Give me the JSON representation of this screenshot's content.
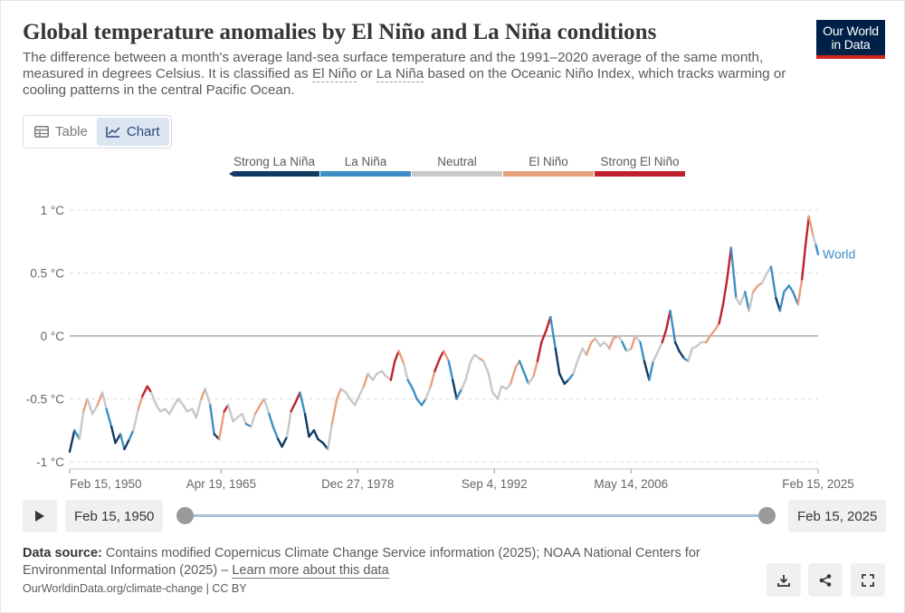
{
  "header": {
    "title": "Global temperature anomalies by El Niño and La Niña conditions",
    "subtitle_before": "The difference between a month's average land-sea surface temperature and the 1991–2020 average of the same month, measured in degrees Celsius. It is classified as ",
    "subtitle_link1": "El Niño",
    "subtitle_mid": " or ",
    "subtitle_link2": "La Niña",
    "subtitle_after": " based on the Oceanic Niño Index, which tracks warming or cooling patterns in the central Pacific Ocean."
  },
  "logo": {
    "line1": "Our World",
    "line2": "in Data",
    "bg_color": "#002147",
    "accent_color": "#ce261e"
  },
  "tabs": [
    {
      "label": "Table",
      "icon": "table-icon",
      "active": false
    },
    {
      "label": "Chart",
      "icon": "line-chart-icon",
      "active": true
    }
  ],
  "chart_data": {
    "type": "line",
    "title": "Global temperature anomalies by El Niño and La Niña conditions",
    "xlabel": "",
    "ylabel": "",
    "xlim": [
      1950.12,
      2025.12
    ],
    "ylim": [
      -1.0,
      1.0
    ],
    "y_ticks": [
      {
        "value": -1.0,
        "label": "-1 °C"
      },
      {
        "value": -0.5,
        "label": "-0.5 °C"
      },
      {
        "value": 0,
        "label": "0 °C"
      },
      {
        "value": 0.5,
        "label": "0.5 °C"
      },
      {
        "value": 1.0,
        "label": "1 °C"
      }
    ],
    "x_ticks": [
      {
        "value": 1950.12,
        "label": "Feb 15, 1950"
      },
      {
        "value": 1965.3,
        "label": "Apr 19, 1965"
      },
      {
        "value": 1978.98,
        "label": "Dec 27, 1978"
      },
      {
        "value": 1992.68,
        "label": "Sep 4, 1992"
      },
      {
        "value": 2006.37,
        "label": "May 14, 2006"
      },
      {
        "value": 2025.12,
        "label": "Feb 15, 2025"
      }
    ],
    "grid": "horizontal-dashed",
    "legend_position": "top",
    "categories": [
      {
        "name": "Strong La Niña",
        "color": "#0f3b63"
      },
      {
        "name": "La Niña",
        "color": "#3d8fc6"
      },
      {
        "name": "Neutral",
        "color": "#c8c8c8"
      },
      {
        "name": "El Niño",
        "color": "#e8a07f"
      },
      {
        "name": "Strong El Niño",
        "color": "#c0212f"
      }
    ],
    "series_label": "World",
    "series_label_color": "#3d8fc6",
    "series": [
      {
        "name": "World",
        "points": [
          [
            1950.12,
            -0.92,
            0
          ],
          [
            1950.6,
            -0.75,
            0
          ],
          [
            1951.1,
            -0.82,
            1
          ],
          [
            1951.5,
            -0.6,
            2
          ],
          [
            1951.9,
            -0.5,
            3
          ],
          [
            1952.4,
            -0.62,
            2
          ],
          [
            1952.9,
            -0.55,
            2
          ],
          [
            1953.4,
            -0.45,
            3
          ],
          [
            1953.8,
            -0.58,
            2
          ],
          [
            1954.3,
            -0.72,
            1
          ],
          [
            1954.7,
            -0.85,
            0
          ],
          [
            1955.2,
            -0.78,
            0
          ],
          [
            1955.6,
            -0.9,
            1
          ],
          [
            1956.1,
            -0.82,
            0
          ],
          [
            1956.5,
            -0.75,
            1
          ],
          [
            1957.0,
            -0.58,
            2
          ],
          [
            1957.4,
            -0.48,
            3
          ],
          [
            1957.9,
            -0.4,
            4
          ],
          [
            1958.3,
            -0.45,
            4
          ],
          [
            1958.8,
            -0.55,
            2
          ],
          [
            1959.2,
            -0.6,
            2
          ],
          [
            1959.7,
            -0.58,
            2
          ],
          [
            1960.1,
            -0.62,
            2
          ],
          [
            1960.6,
            -0.55,
            2
          ],
          [
            1961.0,
            -0.5,
            2
          ],
          [
            1961.5,
            -0.55,
            2
          ],
          [
            1961.9,
            -0.6,
            2
          ],
          [
            1962.4,
            -0.58,
            2
          ],
          [
            1962.8,
            -0.65,
            2
          ],
          [
            1963.3,
            -0.5,
            2
          ],
          [
            1963.7,
            -0.42,
            3
          ],
          [
            1964.2,
            -0.55,
            2
          ],
          [
            1964.6,
            -0.78,
            1
          ],
          [
            1965.1,
            -0.82,
            0
          ],
          [
            1965.6,
            -0.6,
            3
          ],
          [
            1966.0,
            -0.55,
            4
          ],
          [
            1966.5,
            -0.68,
            2
          ],
          [
            1966.9,
            -0.65,
            2
          ],
          [
            1967.4,
            -0.62,
            2
          ],
          [
            1967.8,
            -0.7,
            2
          ],
          [
            1968.3,
            -0.72,
            1
          ],
          [
            1968.7,
            -0.62,
            2
          ],
          [
            1969.2,
            -0.55,
            3
          ],
          [
            1969.6,
            -0.5,
            3
          ],
          [
            1970.1,
            -0.62,
            2
          ],
          [
            1970.5,
            -0.72,
            1
          ],
          [
            1971.0,
            -0.82,
            1
          ],
          [
            1971.4,
            -0.88,
            0
          ],
          [
            1971.9,
            -0.8,
            0
          ],
          [
            1972.3,
            -0.6,
            2
          ],
          [
            1972.8,
            -0.52,
            4
          ],
          [
            1973.2,
            -0.45,
            4
          ],
          [
            1973.7,
            -0.62,
            1
          ],
          [
            1974.1,
            -0.8,
            0
          ],
          [
            1974.6,
            -0.75,
            0
          ],
          [
            1975.0,
            -0.82,
            0
          ],
          [
            1975.5,
            -0.85,
            0
          ],
          [
            1976.0,
            -0.9,
            0
          ],
          [
            1976.4,
            -0.7,
            2
          ],
          [
            1976.9,
            -0.5,
            3
          ],
          [
            1977.3,
            -0.42,
            3
          ],
          [
            1977.8,
            -0.45,
            2
          ],
          [
            1978.2,
            -0.5,
            2
          ],
          [
            1978.7,
            -0.55,
            2
          ],
          [
            1979.1,
            -0.48,
            2
          ],
          [
            1979.6,
            -0.4,
            2
          ],
          [
            1980.0,
            -0.3,
            3
          ],
          [
            1980.5,
            -0.35,
            2
          ],
          [
            1980.9,
            -0.3,
            2
          ],
          [
            1981.4,
            -0.28,
            2
          ],
          [
            1981.8,
            -0.32,
            2
          ],
          [
            1982.3,
            -0.35,
            2
          ],
          [
            1982.7,
            -0.2,
            4
          ],
          [
            1983.1,
            -0.12,
            4
          ],
          [
            1983.6,
            -0.22,
            3
          ],
          [
            1984.0,
            -0.35,
            2
          ],
          [
            1984.5,
            -0.42,
            1
          ],
          [
            1984.9,
            -0.5,
            1
          ],
          [
            1985.4,
            -0.55,
            1
          ],
          [
            1985.8,
            -0.5,
            1
          ],
          [
            1986.3,
            -0.4,
            2
          ],
          [
            1986.7,
            -0.28,
            3
          ],
          [
            1987.2,
            -0.18,
            4
          ],
          [
            1987.6,
            -0.12,
            4
          ],
          [
            1988.1,
            -0.2,
            3
          ],
          [
            1988.5,
            -0.35,
            1
          ],
          [
            1988.9,
            -0.5,
            0
          ],
          [
            1989.4,
            -0.42,
            1
          ],
          [
            1989.8,
            -0.35,
            2
          ],
          [
            1990.3,
            -0.2,
            2
          ],
          [
            1990.7,
            -0.15,
            2
          ],
          [
            1991.2,
            -0.18,
            2
          ],
          [
            1991.6,
            -0.2,
            3
          ],
          [
            1992.1,
            -0.3,
            2
          ],
          [
            1992.5,
            -0.45,
            2
          ],
          [
            1993.0,
            -0.5,
            2
          ],
          [
            1993.4,
            -0.4,
            2
          ],
          [
            1993.9,
            -0.42,
            2
          ],
          [
            1994.3,
            -0.38,
            2
          ],
          [
            1994.8,
            -0.25,
            3
          ],
          [
            1995.2,
            -0.2,
            3
          ],
          [
            1995.7,
            -0.3,
            1
          ],
          [
            1996.1,
            -0.38,
            1
          ],
          [
            1996.6,
            -0.32,
            2
          ],
          [
            1997.0,
            -0.2,
            3
          ],
          [
            1997.4,
            -0.05,
            4
          ],
          [
            1997.9,
            0.05,
            4
          ],
          [
            1998.3,
            0.15,
            4
          ],
          [
            1998.8,
            -0.1,
            1
          ],
          [
            1999.2,
            -0.3,
            0
          ],
          [
            1999.7,
            -0.38,
            0
          ],
          [
            2000.1,
            -0.35,
            0
          ],
          [
            2000.6,
            -0.3,
            1
          ],
          [
            2001.0,
            -0.2,
            2
          ],
          [
            2001.5,
            -0.1,
            2
          ],
          [
            2001.9,
            -0.15,
            2
          ],
          [
            2002.4,
            -0.05,
            3
          ],
          [
            2002.8,
            -0.02,
            3
          ],
          [
            2003.3,
            -0.08,
            2
          ],
          [
            2003.7,
            -0.05,
            2
          ],
          [
            2004.2,
            -0.1,
            2
          ],
          [
            2004.6,
            -0.02,
            3
          ],
          [
            2005.1,
            0.0,
            3
          ],
          [
            2005.5,
            -0.05,
            2
          ],
          [
            2005.9,
            -0.12,
            1
          ],
          [
            2006.4,
            -0.1,
            2
          ],
          [
            2006.8,
            0.0,
            3
          ],
          [
            2007.3,
            -0.05,
            2
          ],
          [
            2007.7,
            -0.2,
            1
          ],
          [
            2008.2,
            -0.35,
            0
          ],
          [
            2008.6,
            -0.2,
            1
          ],
          [
            2009.1,
            -0.12,
            2
          ],
          [
            2009.5,
            -0.05,
            2
          ],
          [
            2009.9,
            0.05,
            4
          ],
          [
            2010.3,
            0.2,
            4
          ],
          [
            2010.8,
            -0.05,
            1
          ],
          [
            2011.2,
            -0.12,
            0
          ],
          [
            2011.7,
            -0.18,
            0
          ],
          [
            2012.1,
            -0.2,
            1
          ],
          [
            2012.5,
            -0.1,
            2
          ],
          [
            2013.0,
            -0.08,
            2
          ],
          [
            2013.4,
            -0.05,
            2
          ],
          [
            2013.9,
            -0.05,
            2
          ],
          [
            2014.3,
            0.0,
            3
          ],
          [
            2014.8,
            0.05,
            3
          ],
          [
            2015.2,
            0.1,
            3
          ],
          [
            2015.6,
            0.25,
            4
          ],
          [
            2016.0,
            0.45,
            4
          ],
          [
            2016.4,
            0.7,
            4
          ],
          [
            2016.9,
            0.3,
            1
          ],
          [
            2017.3,
            0.25,
            2
          ],
          [
            2017.8,
            0.35,
            2
          ],
          [
            2018.2,
            0.2,
            1
          ],
          [
            2018.6,
            0.35,
            2
          ],
          [
            2019.1,
            0.4,
            3
          ],
          [
            2019.5,
            0.42,
            3
          ],
          [
            2020.0,
            0.5,
            2
          ],
          [
            2020.4,
            0.55,
            2
          ],
          [
            2020.9,
            0.3,
            1
          ],
          [
            2021.3,
            0.2,
            0
          ],
          [
            2021.7,
            0.35,
            1
          ],
          [
            2022.2,
            0.4,
            1
          ],
          [
            2022.6,
            0.35,
            1
          ],
          [
            2023.1,
            0.25,
            1
          ],
          [
            2023.5,
            0.45,
            3
          ],
          [
            2023.9,
            0.75,
            4
          ],
          [
            2024.2,
            0.95,
            4
          ],
          [
            2024.6,
            0.8,
            3
          ],
          [
            2024.9,
            0.72,
            2
          ],
          [
            2025.12,
            0.65,
            1
          ]
        ]
      }
    ]
  },
  "controls": {
    "start_date": "Feb 15, 1950",
    "end_date": "Feb 15, 2025",
    "range_start_fraction": 0,
    "range_end_fraction": 1
  },
  "footer": {
    "source_label": "Data source:",
    "source_text": " Contains modified Copernicus Climate Change Service information (2025); NOAA National Centers for Environmental Information (2025) – ",
    "learn_more": "Learn more about this data",
    "url": "OurWorldinData.org/climate-change | CC BY"
  },
  "actions": [
    {
      "name": "download",
      "icon": "download-icon"
    },
    {
      "name": "share",
      "icon": "share-icon"
    },
    {
      "name": "fullscreen",
      "icon": "fullscreen-icon"
    }
  ]
}
